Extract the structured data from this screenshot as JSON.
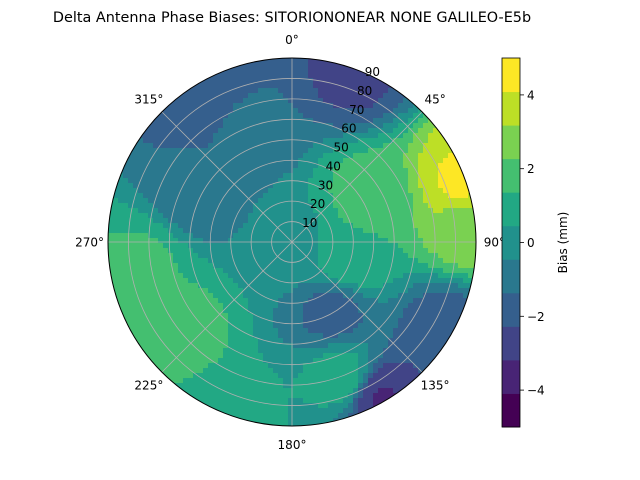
{
  "chart_data": {
    "type": "heatmap",
    "projection": "polar",
    "title": "Delta Antenna Phase Biases: SITORIONONEAR   NONE GALILEO-E5b",
    "theta_direction": "clockwise",
    "theta_zero": "top",
    "theta_tick_labels": [
      "0°",
      "45°",
      "90°",
      "135°",
      "180°",
      "225°",
      "270°",
      "315°"
    ],
    "theta_ticks_deg": [
      0,
      45,
      90,
      135,
      180,
      225,
      270,
      315
    ],
    "r_ticks": [
      10,
      20,
      30,
      40,
      50,
      60,
      70,
      80,
      90
    ],
    "r_tick_labels": [
      "10",
      "20",
      "30",
      "40",
      "50",
      "60",
      "70",
      "80",
      "90"
    ],
    "rlim": [
      0,
      90
    ],
    "grid": true,
    "colorbar": {
      "label": "Bias (mm)",
      "levels": [
        -5,
        -4.5,
        -4,
        -3.5,
        -3,
        -2.5,
        -2,
        -1.5,
        -1,
        -0.5,
        0,
        0.5,
        1,
        1.5,
        2,
        2.5,
        3,
        3.5,
        4,
        4.5,
        5
      ],
      "ticks": [
        -4,
        -2,
        0,
        2,
        4
      ],
      "tick_labels": [
        "−4",
        "−2",
        "0",
        "2",
        "4"
      ],
      "colors": [
        "#440154",
        "#482475",
        "#414487",
        "#355f8d",
        "#2a788e",
        "#21918c",
        "#22a884",
        "#44bf70",
        "#7ad151",
        "#bddf26",
        "#fde725"
      ],
      "colors_note": "viridis"
    },
    "field": {
      "description": "Bias (mm) vs azimuth/elevation-angle; mostly between -2 and 2 mm",
      "points": [
        {
          "az": 0,
          "r": 0,
          "value": 0.2
        },
        {
          "az": 60,
          "r": 45,
          "value": 1.8
        },
        {
          "az": 105,
          "r": 30,
          "value": 1.2
        },
        {
          "az": 150,
          "r": 40,
          "value": -1.6
        },
        {
          "az": 160,
          "r": 70,
          "value": 0.9
        },
        {
          "az": 230,
          "r": 70,
          "value": 1.7
        },
        {
          "az": 260,
          "r": 75,
          "value": 1.5
        },
        {
          "az": 300,
          "r": 50,
          "value": -1.3
        },
        {
          "az": 340,
          "r": 60,
          "value": -1.2
        },
        {
          "az": 20,
          "r": 88,
          "value": -2.5
        },
        {
          "az": 70,
          "r": 88,
          "value": 4.2
        },
        {
          "az": 85,
          "r": 86,
          "value": 2.8
        },
        {
          "az": 120,
          "r": 86,
          "value": -1.9
        },
        {
          "az": 150,
          "r": 88,
          "value": -3.2
        },
        {
          "az": 200,
          "r": 88,
          "value": 0.8
        },
        {
          "az": 330,
          "r": 88,
          "value": -2.2
        }
      ]
    }
  }
}
